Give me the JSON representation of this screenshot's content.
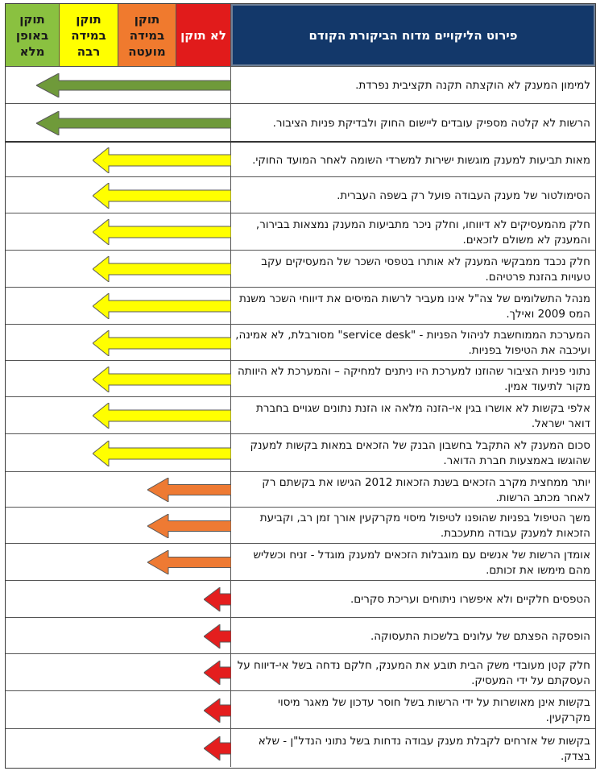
{
  "header": {
    "title": "פירוט הליקויים מדוח הביקורת הקודם",
    "columns": [
      {
        "key": "none",
        "label": "לא תוקן",
        "color": "#e11b1b"
      },
      {
        "key": "partial",
        "label": "תוקן\nבמידה\nמועטה",
        "color": "#f07a2e"
      },
      {
        "key": "large",
        "label": "תוקן\nבמידה\nרבה",
        "color": "#ffff00"
      },
      {
        "key": "full",
        "label": "תוקן\nבאופן\nמלא",
        "color": "#8ac140"
      }
    ]
  },
  "status_colors": {
    "full": "#6f9a3a",
    "large": "#ffff00",
    "partial": "#ee7a33",
    "none": "#e41e1e"
  },
  "rows": [
    {
      "text": "למימון המענק לא הוקצתה תקנה תקציבית נפרדת.",
      "status": "full"
    },
    {
      "text": "הרשות לא קלטה מספיק עובדים ליישום החוק ולבדיקת פניות הציבור.",
      "status": "full"
    },
    {
      "text": "מאות תביעות למענק מוגשות ישירות למשרדי השומה לאחר המועד החוקי.",
      "status": "large"
    },
    {
      "text": "הסימולטור של מענק העבודה פועל רק בשפה העברית.",
      "status": "large"
    },
    {
      "text": "חלק מהמעסיקים לא דיווחו, וחלק ניכר מתביעות המענק נמצאות בבירור, והמענק לא משולם לזכאים.",
      "status": "large"
    },
    {
      "text": "חלק נכבד ממבקשי המענק לא אותרו בטפסי השכר של המעסיקים עקב טעויות בהזנת פרטיהם.",
      "status": "large"
    },
    {
      "text": "מנהל התשלומים של צה\"ל אינו מעביר לרשות המיסים את דיווחי השכר משנת המס 2009 ואילך.",
      "status": "large"
    },
    {
      "text": "המערכת הממוחשבת לניהול הפניות - \"service desk\" מסורבלת, לא אמינה, ועיכבה את הטיפול בפניות.",
      "status": "large"
    },
    {
      "text": "נתוני פניות הציבור שהוזנו למערכת היו ניתנים למחיקה – והמערכת לא היוותה מקור לתיעוד אמין.",
      "status": "large"
    },
    {
      "text": "אלפי בקשות לא אושרו בגין אי-הזנה מלאה או הזנת נתונים שגויים בחברת דואר ישראל.",
      "status": "large"
    },
    {
      "text": "סכום המענק לא התקבל בחשבון הבנק של הזכאים במאות בקשות למענק שהוגשו באמצעות חברת הדואר.",
      "status": "large"
    },
    {
      "text": "יותר ממחצית מקרב הזכאים בשנת הזכאות 2012 הגישו את בקשתם רק לאחר מכתב הרשות.",
      "status": "partial"
    },
    {
      "text": "משך הטיפול בפניות שהופנו לטיפול מיסוי מקרקעין אורך זמן רב, וקביעת הזכאות למענק עבודה מתעכבת.",
      "status": "partial"
    },
    {
      "text": "אומדן הרשות של אנשים עם מוגבלות הזכאים למענק מוגדל - זניח וכשליש מהם מימשו את זכותם.",
      "status": "partial"
    },
    {
      "text": "הטפסים חלקיים ולא איפשרו ניתוחים ועריכת סקרים.",
      "status": "none"
    },
    {
      "text": "הופסקה הפצתם של עלונים בלשכות התעסוקה.",
      "status": "none"
    },
    {
      "text": "חלק קטן מעובדי משק הבית תובע את המענק, חלקם נדחה בשל אי-דיווח על העסקתם על ידי המעסיק.",
      "status": "none"
    },
    {
      "text": "בקשות אינן מאושרות על ידי הרשות בשל חוסר עדכון של מאגר מיסוי מקרקעין.",
      "status": "none"
    },
    {
      "text": "בקשות של אזרחים לקבלת מענק עבודה נדחות בשל נתוני הנדל\"ן - שלא בצדק.",
      "status": "none"
    }
  ]
}
